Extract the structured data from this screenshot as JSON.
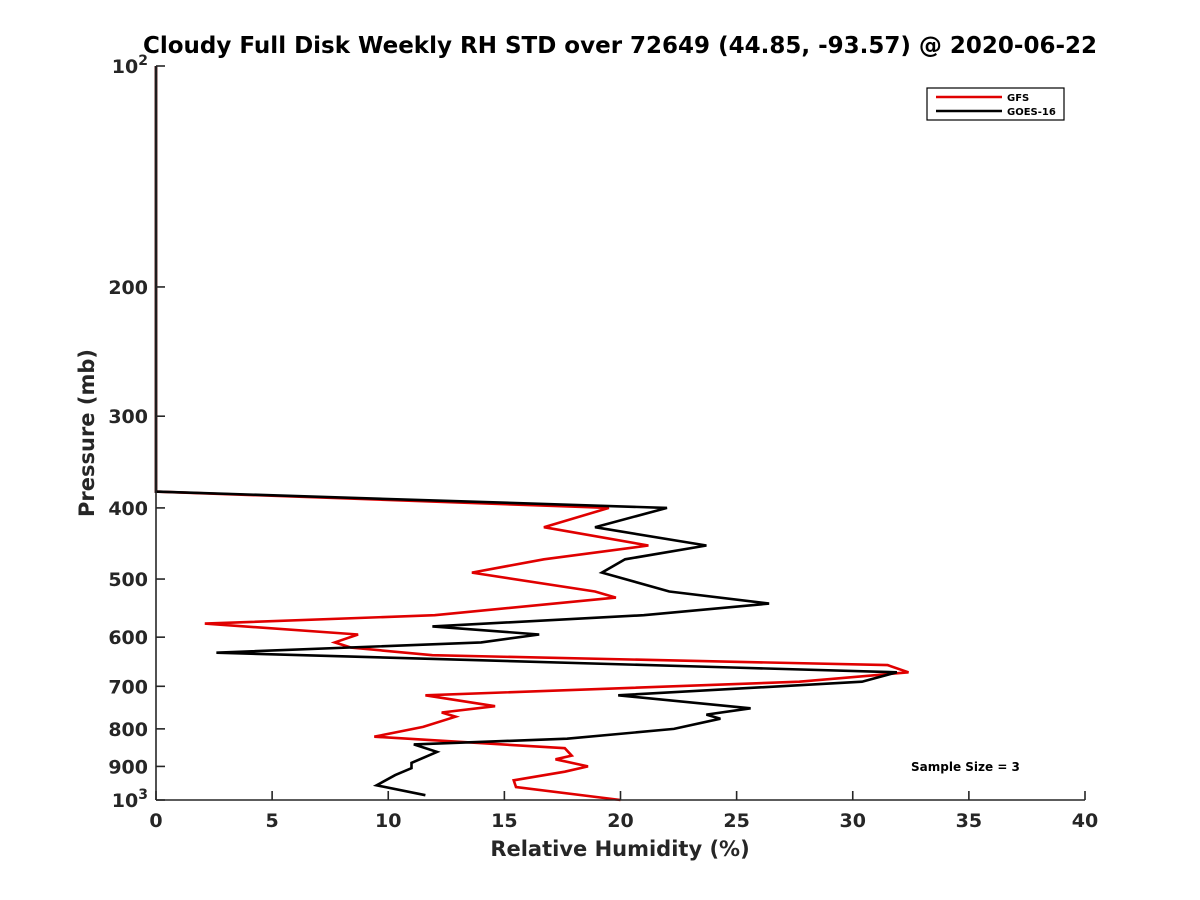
{
  "chart_data": {
    "type": "line",
    "title": "Cloudy Full Disk Weekly RH STD over 72649 (44.85, -93.57) @ 2020-06-22",
    "xlabel": "Relative Humidity (%)",
    "ylabel": "Pressure (mb)",
    "xlim": [
      0,
      40
    ],
    "ylim": [
      100,
      1000
    ],
    "y_scale": "log",
    "y_reversed": true,
    "x_ticks": [
      "0",
      "5",
      "10",
      "15",
      "20",
      "25",
      "30",
      "35",
      "40"
    ],
    "y_ticks": [
      {
        "value": 100,
        "base": "10",
        "exp": "2"
      },
      {
        "value": 200,
        "label": "200"
      },
      {
        "value": 300,
        "label": "300"
      },
      {
        "value": 400,
        "label": "400"
      },
      {
        "value": 500,
        "label": "500"
      },
      {
        "value": 600,
        "label": "600"
      },
      {
        "value": 700,
        "label": "700"
      },
      {
        "value": 800,
        "label": "800"
      },
      {
        "value": 900,
        "label": "900"
      },
      {
        "value": 1000,
        "base": "10",
        "exp": "3"
      }
    ],
    "legend_position": "top-right",
    "annotation": "Sample Size = 3",
    "series": [
      {
        "name": "GFS",
        "color": "#e00000",
        "points": [
          [
            0,
            100
          ],
          [
            0,
            150
          ],
          [
            0,
            200
          ],
          [
            0,
            250
          ],
          [
            0,
            300
          ],
          [
            0,
            350
          ],
          [
            0,
            380
          ],
          [
            19.5,
            400
          ],
          [
            16.7,
            425
          ],
          [
            21.2,
            450
          ],
          [
            16.7,
            470
          ],
          [
            13.6,
            490
          ],
          [
            18.9,
            520
          ],
          [
            19.8,
            530
          ],
          [
            12.0,
            560
          ],
          [
            2.1,
            575
          ],
          [
            8.7,
            595
          ],
          [
            7.7,
            610
          ],
          [
            8.4,
            620
          ],
          [
            11.9,
            635
          ],
          [
            31.5,
            655
          ],
          [
            32.4,
            670
          ],
          [
            27.7,
            690
          ],
          [
            11.6,
            720
          ],
          [
            14.6,
            745
          ],
          [
            12.3,
            760
          ],
          [
            12.9,
            770
          ],
          [
            11.5,
            795
          ],
          [
            9.4,
            820
          ],
          [
            17.6,
            850
          ],
          [
            17.9,
            870
          ],
          [
            17.2,
            880
          ],
          [
            18.6,
            900
          ],
          [
            17.6,
            915
          ],
          [
            15.4,
            940
          ],
          [
            15.5,
            960
          ],
          [
            20.0,
            1000
          ]
        ]
      },
      {
        "name": "GOES-16",
        "color": "#000000",
        "points": [
          [
            0,
            100
          ],
          [
            0,
            150
          ],
          [
            0,
            200
          ],
          [
            0,
            250
          ],
          [
            0,
            300
          ],
          [
            0,
            350
          ],
          [
            0,
            380
          ],
          [
            22.0,
            400
          ],
          [
            18.9,
            425
          ],
          [
            23.7,
            450
          ],
          [
            20.2,
            470
          ],
          [
            19.2,
            490
          ],
          [
            22.1,
            520
          ],
          [
            26.4,
            540
          ],
          [
            21.0,
            560
          ],
          [
            11.9,
            580
          ],
          [
            16.5,
            595
          ],
          [
            14.0,
            610
          ],
          [
            2.6,
            630
          ],
          [
            24.8,
            660
          ],
          [
            31.9,
            670
          ],
          [
            30.4,
            690
          ],
          [
            19.9,
            720
          ],
          [
            25.6,
            750
          ],
          [
            23.7,
            765
          ],
          [
            24.3,
            775
          ],
          [
            22.3,
            800
          ],
          [
            17.7,
            825
          ],
          [
            11.1,
            840
          ],
          [
            12.1,
            860
          ],
          [
            11.0,
            890
          ],
          [
            11.0,
            905
          ],
          [
            10.3,
            925
          ],
          [
            9.5,
            955
          ],
          [
            11.6,
            985
          ]
        ]
      }
    ]
  }
}
